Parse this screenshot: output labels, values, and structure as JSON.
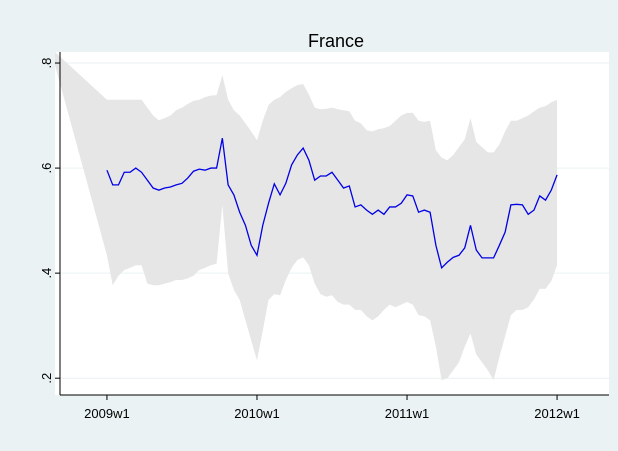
{
  "chart_data": {
    "type": "line",
    "title": "France",
    "x": [
      2530,
      2548,
      2550,
      2552,
      2554,
      2556,
      2558,
      2560,
      2562,
      2564,
      2566,
      2568,
      2570,
      2572,
      2574,
      2576,
      2578,
      2580,
      2582,
      2584,
      2586,
      2588,
      2590,
      2592,
      2594,
      2596,
      2598,
      2600,
      2602,
      2604,
      2606,
      2608,
      2610,
      2612,
      2614,
      2616,
      2618,
      2620,
      2622,
      2624,
      2626,
      2628,
      2630,
      2632,
      2634,
      2636,
      2638,
      2640,
      2642,
      2644,
      2646,
      2648,
      2650,
      2652,
      2654,
      2656,
      2658,
      2660,
      2662,
      2664,
      2666,
      2668,
      2670,
      2672,
      2674,
      2676,
      2678,
      2680,
      2682,
      2684,
      2686,
      2688,
      2690,
      2692,
      2694,
      2696,
      2698,
      2700,
      2702,
      2704
    ],
    "series": [
      {
        "color": "#0000e6",
        "values": [
          null,
          0.596,
          0.568,
          0.568,
          0.592,
          0.592,
          0.6,
          0.592,
          0.577,
          0.562,
          0.558,
          0.562,
          0.564,
          0.568,
          0.571,
          0.581,
          0.594,
          0.598,
          0.596,
          0.6,
          0.6,
          0.657,
          0.568,
          0.549,
          0.516,
          0.491,
          0.453,
          0.434,
          0.491,
          0.533,
          0.57,
          0.549,
          0.571,
          0.606,
          0.625,
          0.638,
          0.615,
          0.577,
          0.585,
          0.585,
          0.592,
          0.577,
          0.562,
          0.566,
          0.526,
          0.53,
          0.52,
          0.512,
          0.52,
          0.512,
          0.526,
          0.526,
          0.533,
          0.549,
          0.547,
          0.516,
          0.52,
          0.516,
          0.453,
          0.41,
          0.421,
          0.43,
          0.434,
          0.448,
          0.491,
          0.444,
          0.429,
          0.429,
          0.429,
          0.453,
          0.478,
          0.53,
          0.531,
          0.53,
          0.512,
          0.52,
          0.547,
          0.539,
          0.558,
          0.587
        ]
      }
    ],
    "band": {
      "color": "#e6e6e6",
      "upper": [
        0.821,
        0.73,
        0.73,
        0.73,
        0.73,
        0.73,
        0.73,
        0.73,
        0.715,
        0.7,
        0.691,
        0.695,
        0.7,
        0.71,
        0.715,
        0.722,
        0.728,
        0.73,
        0.735,
        0.738,
        0.739,
        0.777,
        0.73,
        0.71,
        0.7,
        0.685,
        0.67,
        0.653,
        0.69,
        0.72,
        0.73,
        0.735,
        0.745,
        0.752,
        0.758,
        0.76,
        0.74,
        0.715,
        0.712,
        0.713,
        0.715,
        0.712,
        0.71,
        0.708,
        0.69,
        0.685,
        0.672,
        0.67,
        0.674,
        0.676,
        0.68,
        0.69,
        0.7,
        0.705,
        0.705,
        0.69,
        0.688,
        0.69,
        0.634,
        0.62,
        0.615,
        0.625,
        0.64,
        0.655,
        0.695,
        0.65,
        0.64,
        0.63,
        0.63,
        0.645,
        0.67,
        0.69,
        0.69,
        0.695,
        0.7,
        0.708,
        0.715,
        0.718,
        0.725,
        0.73
      ],
      "lower": [
        0.796,
        0.434,
        0.377,
        0.395,
        0.406,
        0.41,
        0.415,
        0.415,
        0.38,
        0.377,
        0.377,
        0.38,
        0.383,
        0.387,
        0.387,
        0.39,
        0.395,
        0.406,
        0.41,
        0.415,
        0.418,
        0.53,
        0.4,
        0.368,
        0.349,
        0.31,
        0.272,
        0.234,
        0.29,
        0.349,
        0.36,
        0.358,
        0.387,
        0.41,
        0.425,
        0.43,
        0.415,
        0.38,
        0.36,
        0.355,
        0.358,
        0.345,
        0.34,
        0.34,
        0.33,
        0.33,
        0.318,
        0.31,
        0.318,
        0.33,
        0.34,
        0.335,
        0.34,
        0.345,
        0.34,
        0.32,
        0.318,
        0.31,
        0.26,
        0.196,
        0.2,
        0.215,
        0.23,
        0.26,
        0.285,
        0.245,
        0.23,
        0.215,
        0.196,
        0.24,
        0.28,
        0.32,
        0.33,
        0.33,
        0.335,
        0.35,
        0.37,
        0.37,
        0.385,
        0.415
      ]
    },
    "xlim": [
      2530,
      2722
    ],
    "xticks": [
      {
        "value": 2548,
        "label": "2009w1"
      },
      {
        "value": 2600,
        "label": "2010w1"
      },
      {
        "value": 2652,
        "label": "2011w1"
      },
      {
        "value": 2704,
        "label": "2012w1"
      }
    ],
    "ylim": [
      0.168,
      0.821
    ],
    "yticks": [
      {
        "value": 0.2,
        "label": ".2"
      },
      {
        "value": 0.4,
        "label": ".4"
      },
      {
        "value": 0.6,
        "label": ".6"
      },
      {
        "value": 0.8,
        "label": ".8"
      }
    ],
    "grid": true
  }
}
